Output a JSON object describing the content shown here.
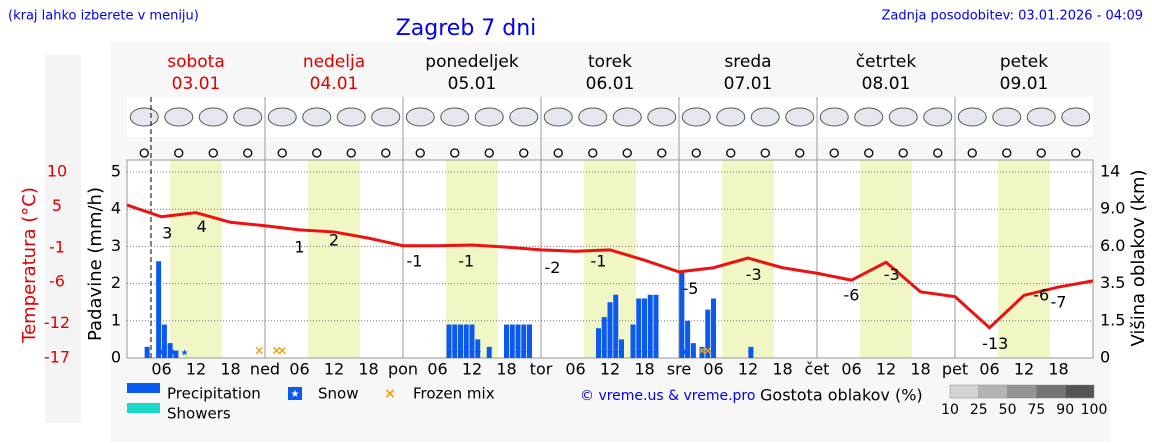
{
  "chart_data": {
    "type": "meteogram",
    "note_left": "(kraj lahko izberete v meniju)",
    "title": "Zagreb 7 dni",
    "updated": "Zadnja posodobitev: 03.01.2026 - 04:09",
    "credit": "© vreme.us & vreme.pro",
    "days": [
      {
        "name": "sobota",
        "date": "03.01",
        "color": "#e00000"
      },
      {
        "name": "nedelja",
        "date": "04.01",
        "color": "#e00000"
      },
      {
        "name": "ponedeljek",
        "date": "05.01",
        "color": "#000000"
      },
      {
        "name": "torek",
        "date": "06.01",
        "color": "#000000"
      },
      {
        "name": "sreda",
        "date": "07.01",
        "color": "#000000"
      },
      {
        "name": "četrtek",
        "date": "08.01",
        "color": "#000000"
      },
      {
        "name": "petek",
        "date": "09.01",
        "color": "#000000"
      }
    ],
    "xlim": [
      0,
      168
    ],
    "xticks": [
      {
        "value": 6,
        "label": "06"
      },
      12,
      18,
      {
        "value": 24,
        "label": "ned"
      },
      {
        "value": 30,
        "label": "06"
      },
      {
        "value": 36,
        "label": "12"
      },
      {
        "value": 42,
        "label": "18"
      },
      {
        "value": 48,
        "label": "pon"
      },
      {
        "value": 54,
        "label": "06"
      },
      {
        "value": 60,
        "label": "12"
      },
      {
        "value": 66,
        "label": "18"
      },
      {
        "value": 72,
        "label": "tor"
      },
      {
        "value": 78,
        "label": "06"
      },
      {
        "value": 84,
        "label": "12"
      },
      {
        "value": 90,
        "label": "18"
      },
      {
        "value": 96,
        "label": "sre"
      },
      {
        "value": 102,
        "label": "06"
      },
      {
        "value": 108,
        "label": "12"
      },
      {
        "value": 114,
        "label": "18"
      },
      {
        "value": 120,
        "label": "čet"
      },
      {
        "value": 126,
        "label": "06"
      },
      {
        "value": 132,
        "label": "12"
      },
      {
        "value": 138,
        "label": "18"
      },
      {
        "value": 144,
        "label": "pet"
      },
      {
        "value": 150,
        "label": "06"
      },
      {
        "value": 156,
        "label": "12"
      },
      {
        "value": 162,
        "label": "18"
      }
    ],
    "ylabel": "Padavine (mm/h)",
    "ylim": [
      0,
      5
    ],
    "yticks": [
      0,
      1,
      2,
      3,
      4,
      5
    ],
    "y2label": "Temperatura (°C)",
    "y2lim": [
      -17,
      10
    ],
    "y2ticks": [
      10,
      5,
      -1,
      -6,
      -12,
      -17
    ],
    "y3label": "Višina oblakov (km)",
    "y3ticks": [
      0,
      1.5,
      3.5,
      {
        "value": 6,
        "label": "6.0"
      },
      {
        "value": 9,
        "label": "9.0"
      },
      14
    ],
    "grid": true,
    "temperature": {
      "color": "#ee1111",
      "x": [
        0,
        6,
        12,
        18,
        24,
        30,
        36,
        42,
        48,
        54,
        60,
        66,
        72,
        78,
        84,
        90,
        96,
        102,
        108,
        114,
        120,
        126,
        132,
        138,
        144,
        150,
        156,
        162,
        168
      ],
      "values": [
        5.2,
        3.5,
        4.1,
        2.7,
        2.2,
        1.6,
        1.3,
        0.4,
        -0.7,
        -0.7,
        -0.6,
        -0.9,
        -1.3,
        -1.5,
        -1.3,
        -2.8,
        -4.5,
        -3.9,
        -2.5,
        -3.9,
        -4.7,
        -5.7,
        -3.1,
        -7.4,
        -8.1,
        -12.6,
        -7.9,
        -6.7,
        -5.8
      ],
      "labels_x": [
        7,
        13,
        30,
        36,
        50,
        59,
        74,
        82,
        98,
        109,
        126,
        133,
        151,
        159,
        162
      ],
      "labels": [
        3,
        4,
        1,
        2,
        -1,
        -1,
        -2,
        -1,
        -5,
        -3,
        -6,
        -3,
        -13,
        -6,
        -7
      ]
    },
    "series": [
      {
        "name": "Precipitation",
        "color": "#0b5af0",
        "x": [
          3.5,
          5.5,
          6.5,
          7.5,
          8.5,
          56,
          57,
          58,
          59,
          60,
          61,
          63,
          66,
          67,
          68,
          69,
          70,
          82,
          83,
          84,
          85,
          86,
          88,
          89,
          90,
          91,
          92,
          96.5,
          97.5,
          98.5,
          100,
          101,
          102,
          108.5
        ],
        "values": [
          0.3,
          2.6,
          0.9,
          0.4,
          0.2,
          0.9,
          0.9,
          0.9,
          0.9,
          0.9,
          0.5,
          0.3,
          0.9,
          0.9,
          0.9,
          0.9,
          0.9,
          0.8,
          1.1,
          1.5,
          1.7,
          0.5,
          0.9,
          1.6,
          1.6,
          1.7,
          1.7,
          2.3,
          1.0,
          0.4,
          0.3,
          1.3,
          1.6,
          0.3
        ]
      },
      {
        "name": "Showers",
        "color": "#1ad8c8",
        "x": [],
        "values": []
      },
      {
        "name": "Snow",
        "color": "#0b5af0",
        "x": [
          6,
          8,
          10,
          57,
          59,
          61,
          67,
          69,
          83,
          85,
          89,
          91,
          97,
          101,
          108.5
        ]
      },
      {
        "name": "Frozen mix",
        "color": "#f0a000",
        "x": [
          23,
          26,
          27,
          100,
          101
        ]
      }
    ],
    "cloud_legend": {
      "title": "Gostota oblakov (%)",
      "ticks": [
        10,
        25,
        50,
        75,
        90,
        100
      ],
      "colors": [
        "#d4d4d4",
        "#b4b4b4",
        "#949494",
        "#747474",
        "#545454"
      ]
    }
  }
}
